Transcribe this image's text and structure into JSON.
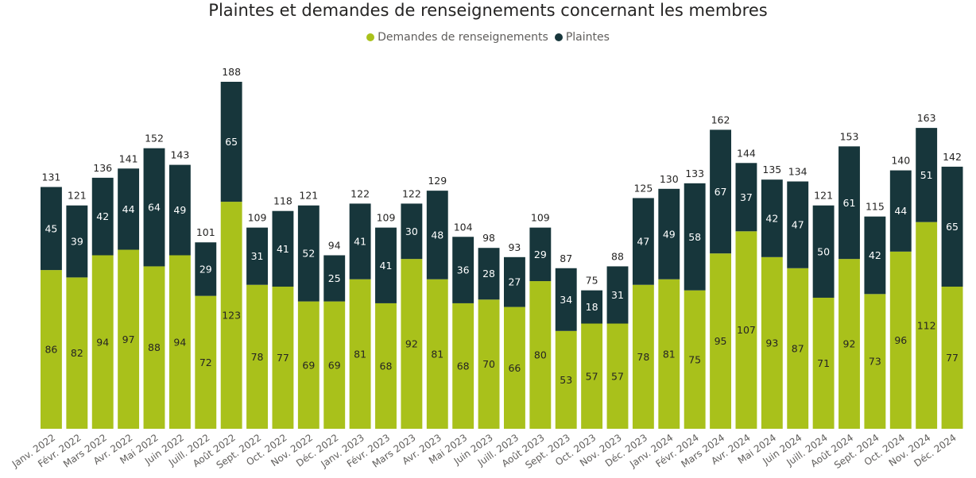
{
  "chart_data": {
    "type": "bar",
    "stacked": true,
    "title": "Plaintes et demandes de renseignements concernant les membres",
    "legend_position": "top-center",
    "categories": [
      "Janv. 2022",
      "Févr. 2022",
      "Mars 2022",
      "Avr. 2022",
      "Mai 2022",
      "Juin 2022",
      "Juill. 2022",
      "Août 2022",
      "Sept. 2022",
      "Oct. 2022",
      "Nov. 2022",
      "Déc. 2022",
      "Janv. 2023",
      "Févr. 2023",
      "Mars 2023",
      "Avr. 2023",
      "Mai 2023",
      "Juin 2023",
      "Juill. 2023",
      "Août 2023",
      "Sept. 2023",
      "Oct. 2023",
      "Nov. 2023",
      "Déc. 2023",
      "Janv. 2024",
      "Févr. 2024",
      "Mars 2024",
      "Avr. 2024",
      "Mai 2024",
      "Juin 2024",
      "Juill. 2024",
      "Août 2024",
      "Sept. 2024",
      "Oct. 2024",
      "Nov. 2024",
      "Déc. 2024"
    ],
    "series": [
      {
        "name": "Demandes de renseignements",
        "color": "#a9c11b",
        "label_color": "#252423",
        "values": [
          86,
          82,
          94,
          97,
          88,
          94,
          72,
          123,
          78,
          77,
          69,
          69,
          81,
          68,
          92,
          81,
          68,
          70,
          66,
          80,
          53,
          57,
          57,
          78,
          81,
          75,
          95,
          107,
          93,
          87,
          71,
          92,
          73,
          96,
          112,
          77
        ]
      },
      {
        "name": "Plaintes",
        "color": "#17363b",
        "label_color": "#ffffff",
        "values": [
          45,
          39,
          42,
          44,
          64,
          49,
          29,
          65,
          31,
          41,
          52,
          25,
          41,
          41,
          30,
          48,
          36,
          28,
          27,
          29,
          34,
          18,
          31,
          47,
          49,
          58,
          67,
          37,
          42,
          47,
          50,
          61,
          42,
          44,
          51,
          65
        ]
      }
    ],
    "totals": [
      131,
      121,
      136,
      141,
      152,
      143,
      101,
      188,
      109,
      118,
      121,
      94,
      122,
      109,
      122,
      129,
      104,
      98,
      93,
      109,
      87,
      75,
      88,
      125,
      130,
      133,
      162,
      144,
      135,
      134,
      121,
      153,
      115,
      140,
      163,
      142
    ],
    "xlabel": "",
    "ylabel": "",
    "ylim": [
      0,
      188
    ],
    "grid": false
  }
}
